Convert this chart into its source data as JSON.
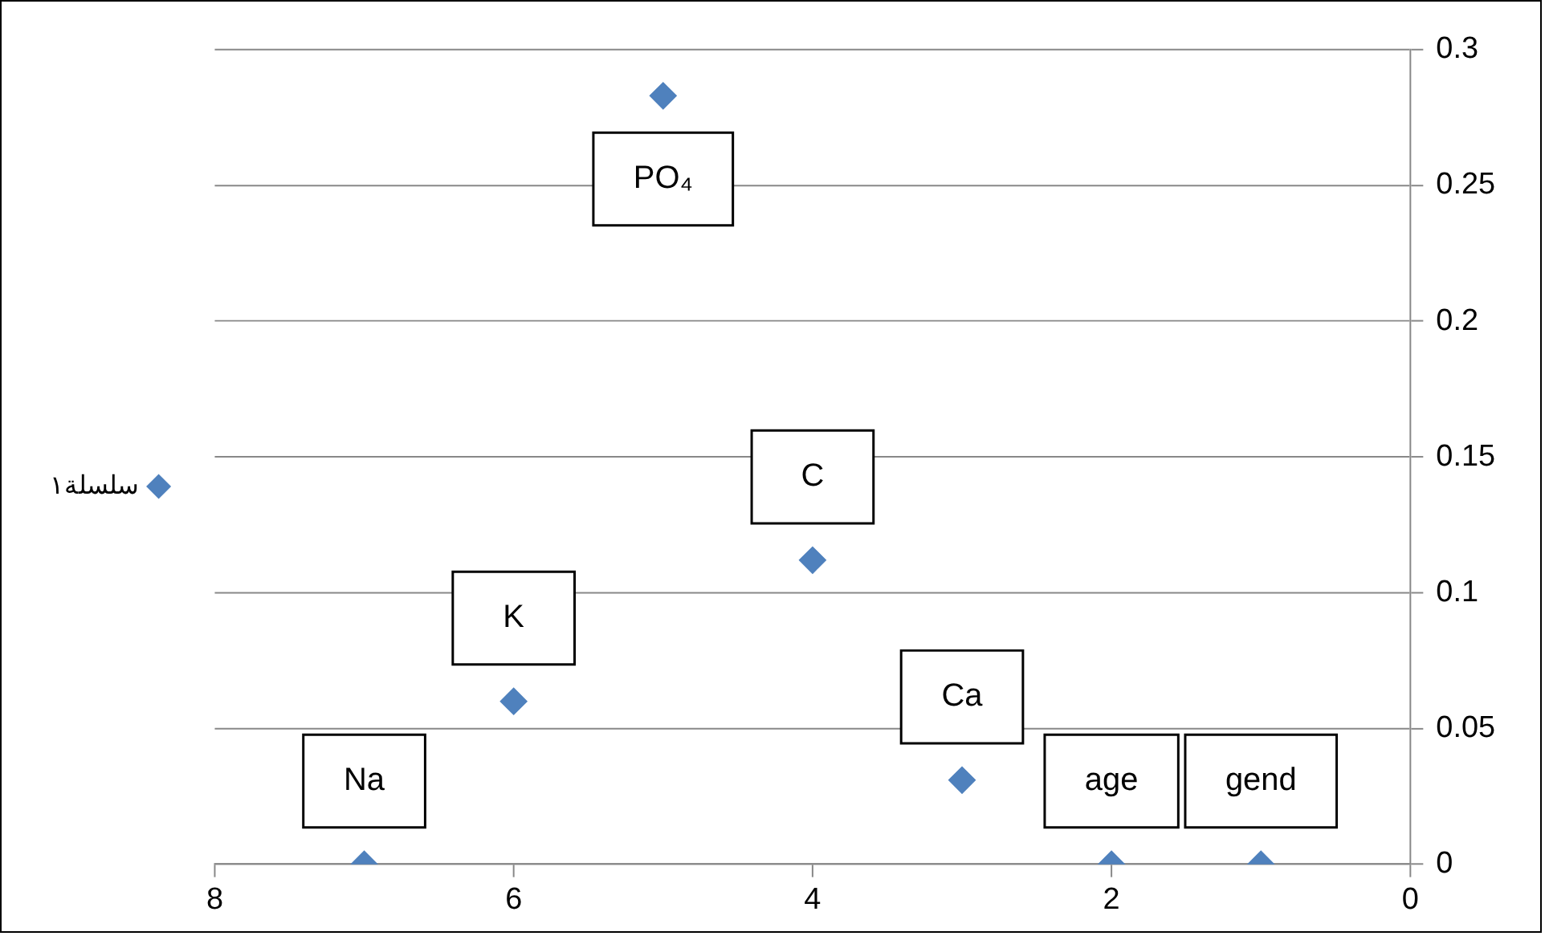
{
  "chart_data": {
    "type": "scatter",
    "x": [
      7,
      6,
      5,
      4,
      3,
      2,
      1
    ],
    "series": [
      {
        "name": "سلسلة١",
        "color": "#4f81bd",
        "values": [
          0,
          0.06,
          0.283,
          0.112,
          0.031,
          0,
          0
        ]
      }
    ],
    "xlim": [
      8,
      0
    ],
    "xticks": [
      8,
      6,
      4,
      2,
      0
    ],
    "ylim": [
      0,
      0.3
    ],
    "yticks": [
      0,
      0.05,
      0.1,
      0.15,
      0.2,
      0.25,
      0.3
    ],
    "grid": "y",
    "legend": "left",
    "marker": "diamond",
    "annotations": [
      {
        "text": "Na",
        "x": 7,
        "y": 0
      },
      {
        "text": "K",
        "x": 6,
        "y": 0.06
      },
      {
        "text": "PO₄",
        "x": 5,
        "y": 0.283
      },
      {
        "text": "C",
        "x": 4,
        "y": 0.112
      },
      {
        "text": "Ca",
        "x": 3,
        "y": 0.031
      },
      {
        "text": "age",
        "x": 2,
        "y": 0
      },
      {
        "text": "gend",
        "x": 1,
        "y": 0
      }
    ]
  }
}
